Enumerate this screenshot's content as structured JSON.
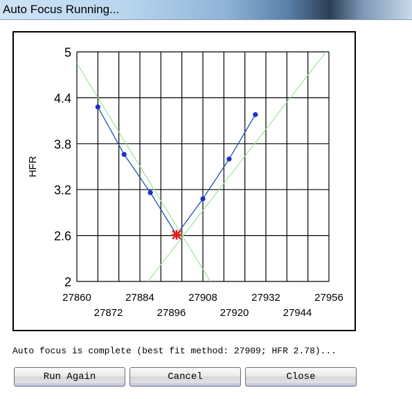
{
  "window": {
    "title": "Auto Focus Running..."
  },
  "chart_data": {
    "type": "scatter",
    "ylabel": "HFR",
    "xlabel": "",
    "title": "",
    "xlim": [
      27860,
      27956
    ],
    "ylim": [
      2,
      5
    ],
    "x_ticks_top": [
      "27860",
      "27884",
      "27908",
      "27932",
      "27956"
    ],
    "x_ticks_bottom": [
      "27872",
      "27896",
      "27920",
      "27944"
    ],
    "y_ticks": [
      "5",
      "4.4",
      "3.8",
      "3.2",
      "2.6",
      "2"
    ],
    "grid": true,
    "points": [
      {
        "x": 27868,
        "y": 4.28
      },
      {
        "x": 27878,
        "y": 3.66
      },
      {
        "x": 27888,
        "y": 3.16
      },
      {
        "x": 27898,
        "y": 2.61
      },
      {
        "x": 27908,
        "y": 3.08
      },
      {
        "x": 27918,
        "y": 3.6
      },
      {
        "x": 27928,
        "y": 4.18
      }
    ],
    "best_point": {
      "x": 27898,
      "y": 2.61
    },
    "fit_lines": [
      {
        "x1": 27860,
        "y1": 4.85,
        "x2": 27918,
        "y2": 1.6
      },
      {
        "x1": 27878,
        "y1": 1.6,
        "x2": 27956,
        "y2": 5.05
      }
    ],
    "colors": {
      "points": "#1a2fd0",
      "line": "#1a55a8",
      "fit": "#9be39b",
      "best": "#e52020",
      "grid": "#000000"
    }
  },
  "status": {
    "text": "Auto focus is complete (best fit method: 27909; HFR 2.78)..."
  },
  "buttons": {
    "run_again": "Run Again",
    "cancel": "Cancel",
    "close": "Close"
  }
}
